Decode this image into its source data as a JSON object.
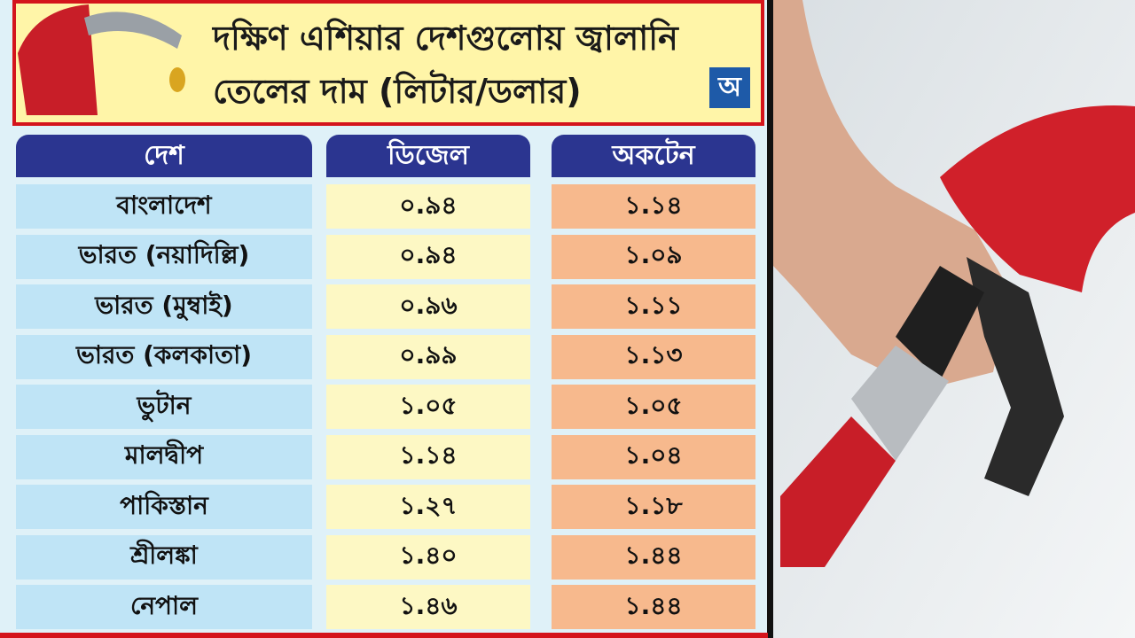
{
  "header": {
    "title_lines": [
      "দক্ষিণ এশিয়ার দেশগুলোয় জ্বালানি",
      "তেলের দাম (লিটার/ডলার)"
    ],
    "logo": "অ"
  },
  "table": {
    "columns": [
      "দেশ",
      "ডিজেল",
      "অকটেন"
    ],
    "rows": [
      [
        "বাংলাদেশ",
        "০.৯৪",
        "১.১৪"
      ],
      [
        "ভারত (নয়াদিল্লি)",
        "০.৯৪",
        "১.০৯"
      ],
      [
        "ভারত (মুম্বাই)",
        "০.৯৬",
        "১.১১"
      ],
      [
        "ভারত (কলকাতা)",
        "০.৯৯",
        "১.১৩"
      ],
      [
        "ভুটান",
        "১.০৫",
        "১.০৫"
      ],
      [
        "মালদ্বীপ",
        "১.১৪",
        "১.০৪"
      ],
      [
        "পাকিস্তান",
        "১.২৭",
        "১.১৮"
      ],
      [
        "শ্রীলঙ্কা",
        "১.৪০",
        "১.৪৪"
      ],
      [
        "নেপাল",
        "১.৪৬",
        "১.৪৪"
      ]
    ]
  }
}
